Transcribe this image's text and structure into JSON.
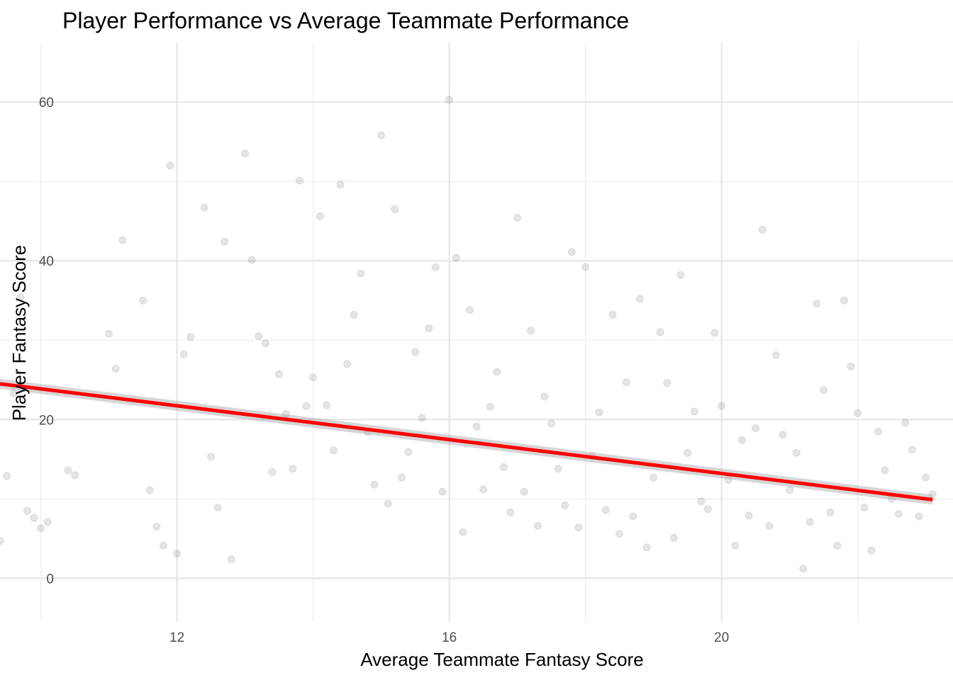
{
  "chart_data": {
    "type": "scatter",
    "title": "Player Performance vs Average Teammate Performance",
    "xlabel": "Average Teammate Fantasy Score",
    "ylabel": "Player Fantasy Score",
    "xlim": [
      9.4,
      23.4
    ],
    "ylim": [
      -5.5,
      67.5
    ],
    "x_ticks": [
      12,
      16,
      20
    ],
    "x_tick_labels": [
      "12",
      "16",
      "20"
    ],
    "y_ticks": [
      0,
      20,
      40,
      60
    ],
    "y_tick_labels": [
      "0",
      "20",
      "40",
      "60"
    ],
    "grid": true,
    "legend": "none",
    "point_color": "#000000",
    "point_alpha": 0.1,
    "points_description_note": "",
    "x": [
      9.4,
      9.5,
      9.6,
      9.7,
      9.8,
      9.9,
      10.0,
      10.1,
      10.4,
      10.5,
      11.0,
      11.1,
      11.2,
      11.5,
      11.6,
      11.7,
      11.8,
      11.9,
      12.0,
      12.1,
      12.2,
      12.4,
      12.5,
      12.6,
      12.7,
      12.8,
      13.0,
      13.1,
      13.2,
      13.3,
      13.4,
      13.5,
      13.6,
      13.7,
      13.8,
      13.9,
      14.0,
      14.1,
      14.2,
      14.3,
      14.4,
      14.5,
      14.6,
      14.7,
      14.8,
      14.9,
      15.0,
      15.1,
      15.2,
      15.3,
      15.4,
      15.5,
      15.6,
      15.7,
      15.8,
      15.9,
      16.0,
      16.1,
      16.2,
      16.3,
      16.4,
      16.5,
      16.6,
      16.7,
      16.8,
      16.9,
      17.0,
      17.1,
      17.2,
      17.3,
      17.4,
      17.5,
      17.6,
      17.7,
      17.8,
      17.9,
      18.0,
      18.1,
      18.2,
      18.3,
      18.4,
      18.5,
      18.6,
      18.7,
      18.8,
      18.9,
      19.0,
      19.1,
      19.2,
      19.3,
      19.4,
      19.5,
      19.6,
      19.7,
      19.8,
      19.9,
      20.0,
      20.1,
      20.2,
      20.3,
      20.4,
      20.5,
      20.6,
      20.7,
      20.8,
      20.9,
      21.0,
      21.1,
      21.2,
      21.3,
      21.4,
      21.5,
      21.6,
      21.7,
      21.8,
      21.9,
      22.0,
      22.1,
      22.2,
      22.3,
      22.4,
      22.5,
      22.6,
      22.7,
      22.8,
      22.9,
      23.0,
      23.1
    ],
    "y": [
      4.7,
      12.9,
      23.3,
      35.4,
      8.5,
      7.6,
      6.3,
      7.1,
      13.6,
      13.0,
      30.8,
      26.4,
      42.6,
      35.0,
      11.1,
      6.5,
      4.1,
      52.0,
      3.1,
      28.2,
      30.4,
      46.7,
      15.3,
      8.9,
      42.4,
      2.4,
      53.5,
      40.1,
      30.5,
      29.6,
      13.4,
      25.7,
      20.7,
      13.8,
      50.1,
      21.7,
      25.3,
      45.6,
      21.8,
      16.1,
      49.6,
      27.0,
      33.2,
      38.4,
      18.4,
      11.8,
      55.8,
      9.4,
      46.5,
      12.7,
      15.9,
      28.5,
      20.2,
      31.5,
      39.2,
      10.9,
      60.3,
      40.4,
      5.8,
      33.8,
      19.1,
      11.2,
      21.6,
      26.0,
      14.0,
      8.3,
      45.4,
      10.9,
      31.2,
      6.6,
      22.9,
      19.5,
      13.8,
      9.2,
      41.1,
      6.4,
      39.2,
      15.4,
      20.9,
      8.6,
      33.2,
      5.6,
      24.7,
      7.8,
      35.2,
      3.9,
      12.7,
      31.0,
      24.6,
      5.1,
      38.2,
      15.8,
      21.0,
      9.7,
      8.7,
      30.9,
      21.7,
      12.4,
      4.1,
      17.4,
      7.9,
      18.9,
      43.9,
      6.6,
      28.1,
      18.1,
      11.1,
      15.8,
      1.2,
      7.1,
      34.6,
      23.7,
      8.3,
      4.1,
      35.0,
      26.7,
      20.8,
      8.9,
      3.5,
      18.5,
      13.6,
      10.0,
      8.1,
      19.6,
      16.2,
      7.8,
      12.7,
      10.6
    ],
    "trend_line": {
      "method": "linear",
      "color": "#ff0000",
      "x": [
        9.4,
        23.1
      ],
      "y": [
        24.5,
        9.9
      ]
    }
  }
}
